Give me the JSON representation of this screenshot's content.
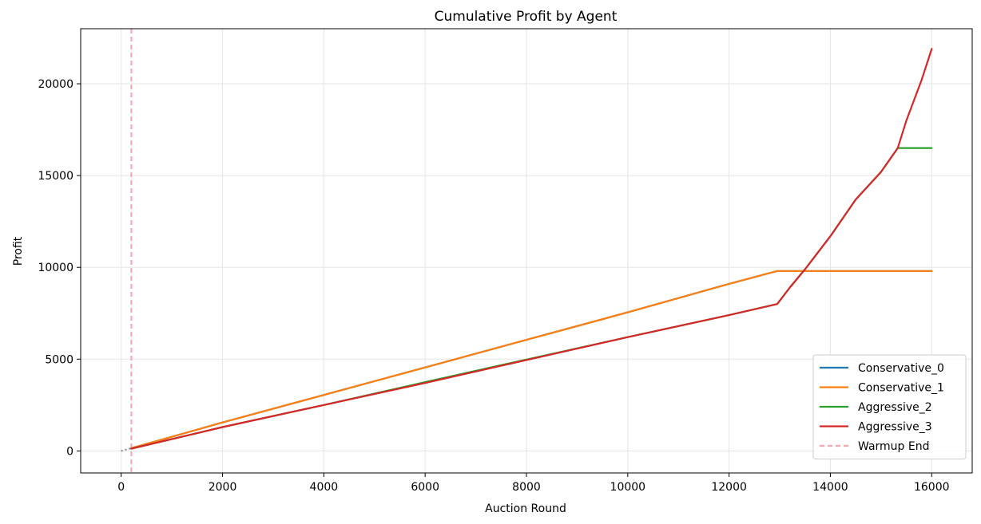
{
  "chart_data": {
    "type": "line",
    "title": "Cumulative Profit by Agent",
    "xlabel": "Auction Round",
    "ylabel": "Profit",
    "xlim": [
      -800,
      16800
    ],
    "ylim": [
      -1200,
      23000
    ],
    "xticks": [
      0,
      2000,
      4000,
      6000,
      8000,
      10000,
      12000,
      14000,
      16000
    ],
    "yticks": [
      0,
      5000,
      10000,
      15000,
      20000
    ],
    "grid": true,
    "legend_position": "lower-right",
    "warmup_color": "#f4a6b0",
    "warmup_x": 200,
    "warmup_label": "Warmup End",
    "warmup_segment": {
      "x": [
        0,
        200
      ],
      "y": [
        0,
        150
      ],
      "color": "#888888"
    },
    "series": [
      {
        "name": "Conservative_0",
        "color": "#1f77b4",
        "x": [
          200,
          2000,
          4000,
          6000,
          8000,
          10000,
          12000,
          12950,
          16000
        ],
        "y": [
          150,
          1550,
          3050,
          4550,
          6050,
          7550,
          9100,
          9800,
          9800
        ]
      },
      {
        "name": "Conservative_1",
        "color": "#ff7f0e",
        "x": [
          200,
          2000,
          4000,
          6000,
          8000,
          10000,
          12000,
          12950,
          16000
        ],
        "y": [
          150,
          1550,
          3050,
          4550,
          6050,
          7550,
          9100,
          9800,
          9800
        ]
      },
      {
        "name": "Aggressive_2",
        "color": "#2ca02c",
        "x": [
          200,
          2000,
          4000,
          6000,
          8000,
          10000,
          12000,
          12950,
          13200,
          13500,
          14000,
          14500,
          15000,
          15330,
          16000
        ],
        "y": [
          120,
          1300,
          2500,
          3750,
          4980,
          6200,
          7400,
          8000,
          8900,
          9900,
          11700,
          13700,
          15200,
          16500,
          16500
        ]
      },
      {
        "name": "Aggressive_3",
        "color": "#d62728",
        "x": [
          200,
          2000,
          4000,
          6000,
          8000,
          10000,
          12000,
          12950,
          13200,
          13500,
          14000,
          14500,
          15000,
          15330,
          15500,
          15800,
          16000
        ],
        "y": [
          120,
          1300,
          2500,
          3700,
          4950,
          6200,
          7400,
          8000,
          8900,
          9900,
          11700,
          13700,
          15200,
          16500,
          18000,
          20200,
          21900
        ]
      }
    ]
  }
}
